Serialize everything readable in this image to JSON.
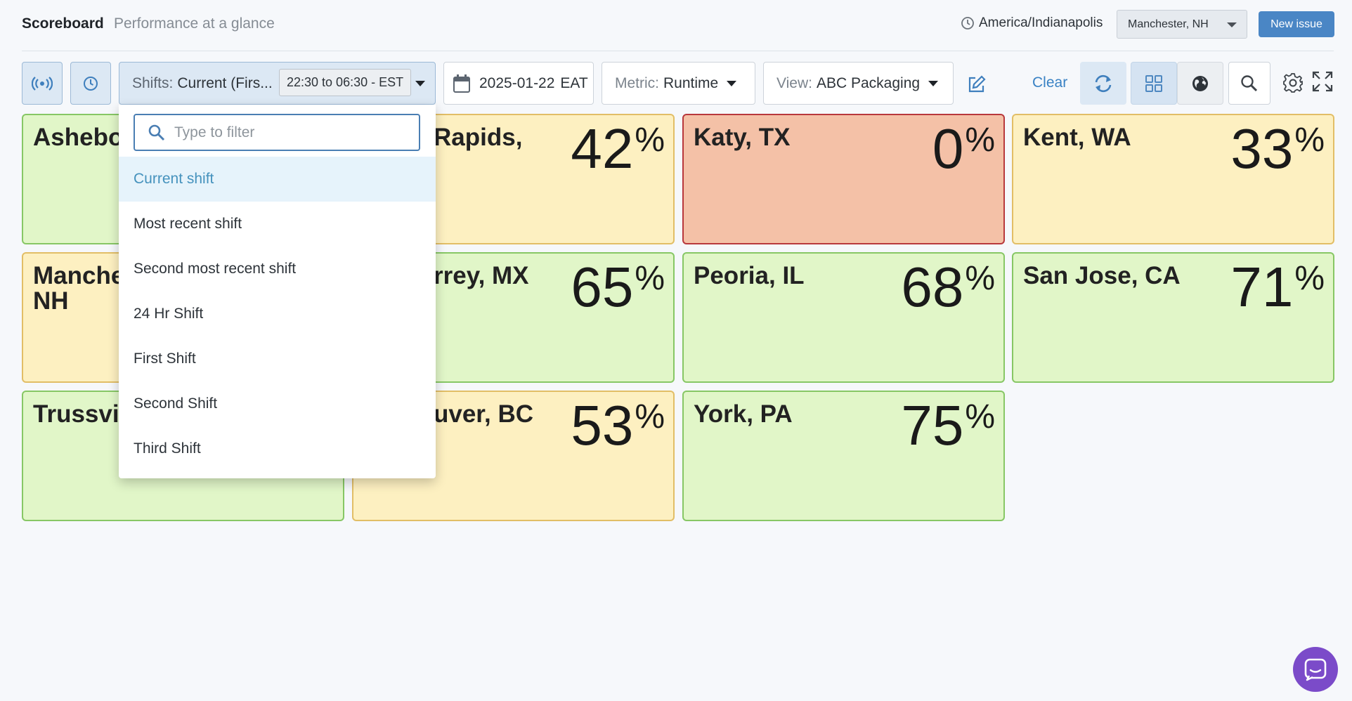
{
  "header": {
    "title": "Scoreboard",
    "subtitle": "Performance at a glance",
    "timezone": "America/Indianapolis",
    "location": "Manchester, NH",
    "new_issue": "New issue"
  },
  "toolbar": {
    "shifts_label": "Shifts:",
    "shifts_value": "Current (Firs...",
    "shift_range": "22:30 to 06:30 - EST",
    "date": "2025-01-22",
    "date_tz": "EAT",
    "metric_label": "Metric:",
    "metric_value": "Runtime",
    "view_label": "View:",
    "view_value": "ABC Packaging",
    "clear": "Clear"
  },
  "dropdown": {
    "filter_placeholder": "Type to filter",
    "items": [
      {
        "label": "Current shift",
        "active": true
      },
      {
        "label": "Most recent shift"
      },
      {
        "label": "Second most recent shift"
      },
      {
        "label": "24 Hr Shift"
      },
      {
        "label": "First Shift"
      },
      {
        "label": "Second Shift"
      },
      {
        "label": "Third Shift"
      }
    ]
  },
  "tiles": [
    {
      "name": "Ashebor",
      "value": "",
      "status": "green"
    },
    {
      "name": "Rapids,",
      "value": "42",
      "status": "yellow"
    },
    {
      "name": "Katy, TX",
      "value": "0",
      "status": "red"
    },
    {
      "name": "Kent, WA",
      "value": "33",
      "status": "yellow"
    },
    {
      "name": "Manche\nNH",
      "value": "",
      "status": "yellow"
    },
    {
      "name": "rrey, MX",
      "value": "65",
      "status": "green"
    },
    {
      "name": "Peoria, IL",
      "value": "68",
      "status": "green"
    },
    {
      "name": "San Jose, CA",
      "value": "71",
      "status": "green"
    },
    {
      "name": "Trussvil",
      "value": "",
      "status": "green"
    },
    {
      "name": "uver, BC",
      "value": "53",
      "status": "yellow"
    },
    {
      "name": "York, PA",
      "value": "75",
      "status": "green"
    }
  ],
  "percent_symbol": "%",
  "colors": {
    "green_bg": "#e1f6c8",
    "yellow_bg": "#fdf0c1",
    "red_bg": "#f4c1a7",
    "accent": "#4a86c5"
  }
}
